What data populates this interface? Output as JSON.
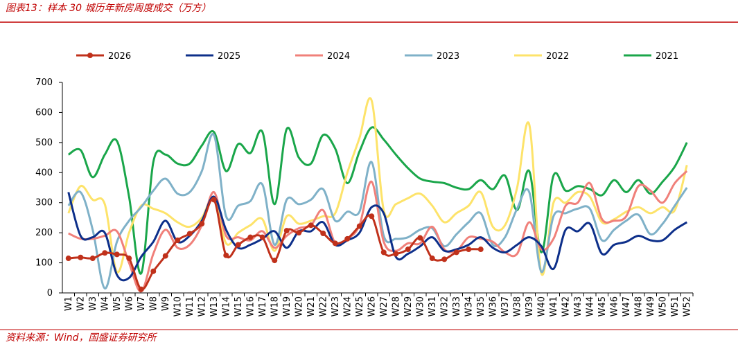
{
  "chart_data": {
    "type": "line",
    "title": "图表13：样本 30 城历年新房周度成交（万方）",
    "source": "资料来源：Wind，国盛证券研究所",
    "categories": [
      "W1",
      "W2",
      "W3",
      "W4",
      "W5",
      "W6",
      "W7",
      "W8",
      "W9",
      "W10",
      "W11",
      "W12",
      "W13",
      "W14",
      "W15",
      "W16",
      "W17",
      "W18",
      "W19",
      "W20",
      "W21",
      "W22",
      "W23",
      "W24",
      "W25",
      "W26",
      "W27",
      "W28",
      "W29",
      "W30",
      "W31",
      "W32",
      "W33",
      "W34",
      "W35",
      "W36",
      "W37",
      "W38",
      "W39",
      "W40",
      "W41",
      "W42",
      "W43",
      "W44",
      "W45",
      "W46",
      "W47",
      "W48",
      "W49",
      "W50",
      "W51",
      "W52"
    ],
    "ylim": [
      0,
      700
    ],
    "yticks": [
      0,
      100,
      200,
      300,
      400,
      500,
      600,
      700
    ],
    "grid": false,
    "legend": "top",
    "series": [
      {
        "name": "2026",
        "color": "#c0311b",
        "markers": true,
        "values": [
          115,
          118,
          115,
          133,
          128,
          115,
          12,
          72,
          123,
          175,
          197,
          230,
          310,
          125,
          160,
          185,
          185,
          108,
          207,
          200,
          225,
          198,
          165,
          180,
          222,
          255,
          135,
          130,
          145,
          183,
          115,
          112,
          135,
          145,
          145,
          null,
          null,
          null,
          null,
          null,
          null,
          null,
          null,
          null,
          null,
          null,
          null,
          null,
          null,
          null,
          null,
          null
        ]
      },
      {
        "name": "2025",
        "color": "#0d2f8a",
        "values": [
          335,
          190,
          185,
          200,
          60,
          50,
          120,
          170,
          240,
          170,
          190,
          240,
          320,
          210,
          150,
          160,
          180,
          205,
          150,
          205,
          205,
          235,
          160,
          175,
          200,
          285,
          265,
          120,
          130,
          155,
          185,
          140,
          145,
          160,
          185,
          150,
          135,
          160,
          185,
          155,
          80,
          210,
          205,
          230,
          130,
          160,
          170,
          190,
          175,
          175,
          210,
          235
        ]
      },
      {
        "name": "2024",
        "color": "#f0807a",
        "values": [
          198,
          180,
          180,
          190,
          205,
          100,
          5,
          130,
          210,
          150,
          160,
          225,
          335,
          190,
          185,
          175,
          205,
          150,
          190,
          215,
          225,
          275,
          165,
          180,
          225,
          370,
          170,
          140,
          165,
          165,
          220,
          145,
          140,
          185,
          180,
          170,
          135,
          130,
          235,
          145,
          180,
          290,
          300,
          365,
          245,
          240,
          255,
          355,
          340,
          300,
          365,
          405
        ]
      },
      {
        "name": "2023",
        "color": "#7fb1c8",
        "values": [
          290,
          335,
          210,
          15,
          170,
          240,
          285,
          340,
          380,
          330,
          335,
          405,
          525,
          255,
          290,
          305,
          360,
          160,
          310,
          295,
          310,
          345,
          240,
          270,
          270,
          435,
          190,
          180,
          185,
          210,
          215,
          155,
          195,
          235,
          265,
          160,
          185,
          280,
          335,
          70,
          255,
          265,
          280,
          280,
          175,
          210,
          240,
          260,
          195,
          230,
          290,
          350
        ]
      },
      {
        "name": "2022",
        "color": "#fde36a",
        "values": [
          265,
          355,
          310,
          295,
          70,
          200,
          290,
          280,
          265,
          235,
          220,
          250,
          315,
          165,
          200,
          225,
          245,
          140,
          255,
          230,
          240,
          255,
          265,
          400,
          515,
          640,
          275,
          295,
          315,
          330,
          290,
          235,
          265,
          290,
          335,
          220,
          225,
          350,
          560,
          65,
          300,
          300,
          335,
          320,
          235,
          245,
          270,
          285,
          265,
          285,
          275,
          425
        ]
      },
      {
        "name": "2021",
        "color": "#1aa64a",
        "values": [
          460,
          475,
          385,
          460,
          505,
          320,
          65,
          435,
          460,
          430,
          430,
          490,
          535,
          405,
          495,
          465,
          535,
          295,
          545,
          450,
          430,
          525,
          480,
          365,
          470,
          550,
          510,
          460,
          415,
          380,
          370,
          365,
          350,
          345,
          375,
          345,
          390,
          275,
          405,
          135,
          390,
          340,
          355,
          345,
          325,
          375,
          335,
          375,
          330,
          370,
          420,
          500
        ]
      }
    ]
  }
}
